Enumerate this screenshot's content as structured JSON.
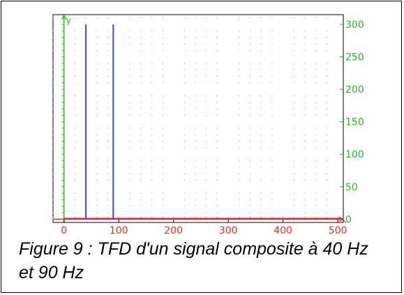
{
  "caption": "Figure 9 : TFD d'un signal composite à 40 Hz et 90 Hz",
  "chart_data": {
    "type": "bar",
    "title": "",
    "xlabel": "",
    "ylabel": "y",
    "xlim": [
      -20,
      510
    ],
    "ylim": [
      -5,
      315
    ],
    "x_ticks": [
      0,
      100,
      200,
      300,
      400,
      500
    ],
    "y_ticks": [
      0,
      50,
      100,
      150,
      200,
      250,
      300
    ],
    "x_tick_labels": [
      "0",
      "100",
      "200",
      "300",
      "400",
      "500"
    ],
    "y_tick_labels": [
      "0",
      "50",
      "100",
      "150",
      "200",
      "250",
      "300"
    ],
    "x_minor_step": 20,
    "y_minor_step": 10,
    "grid": true,
    "y_axis_position": "right",
    "series": [
      {
        "x": [
          40,
          90
        ],
        "values": [
          300,
          300
        ],
        "color": "#4444dd"
      }
    ],
    "baseline_color": "#cc3355",
    "x_axis_color": "#ff2222",
    "y_axis_color": "#22bb22"
  }
}
